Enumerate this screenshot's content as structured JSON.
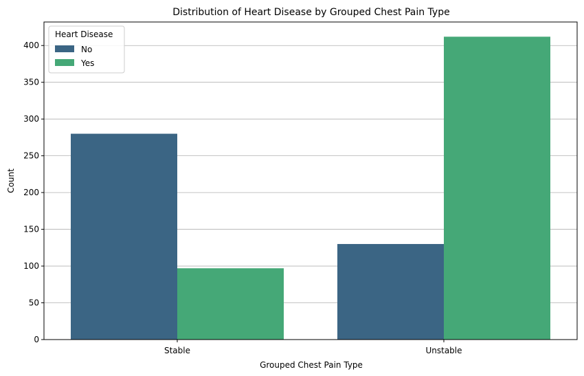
{
  "chart_data": {
    "type": "bar",
    "title": "Distribution of Heart Disease by Grouped Chest Pain Type",
    "xlabel": "Grouped Chest Pain Type",
    "ylabel": "Count",
    "categories": [
      "Stable",
      "Unstable"
    ],
    "series": [
      {
        "name": "No",
        "values": [
          280,
          130
        ],
        "color": "#3b6584"
      },
      {
        "name": "Yes",
        "values": [
          97,
          412
        ],
        "color": "#45a877"
      }
    ],
    "ylim": [
      0,
      432
    ],
    "yticks": [
      0,
      50,
      100,
      150,
      200,
      250,
      300,
      350,
      400
    ],
    "grid": "y",
    "legend": {
      "title": "Heart Disease",
      "placement": "top-left"
    }
  }
}
